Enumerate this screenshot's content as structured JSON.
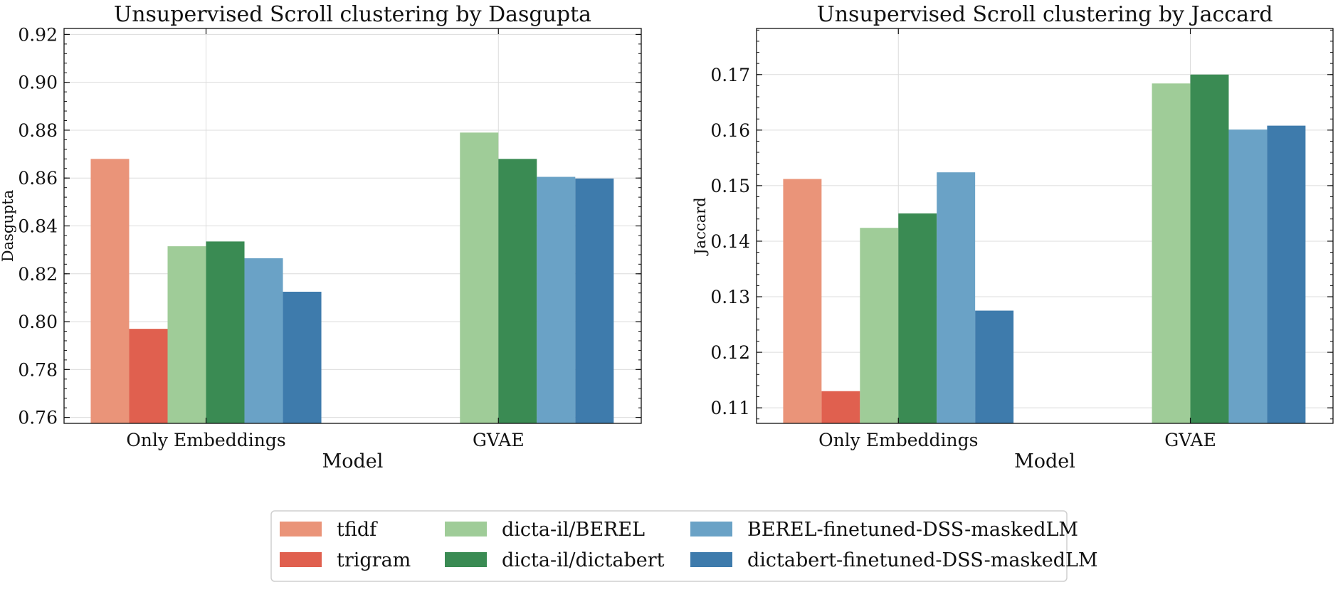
{
  "chart_data": [
    {
      "type": "bar",
      "title": "Unsupervised Scroll clustering by Dasgupta",
      "xlabel": "Model",
      "ylabel": "Dasgupta",
      "categories": [
        "Only Embeddings",
        "GVAE"
      ],
      "ylim": [
        0.7575,
        0.9225
      ],
      "yticks": [
        "0.76",
        "0.78",
        "0.80",
        "0.82",
        "0.84",
        "0.86",
        "0.88",
        "0.90",
        "0.92"
      ],
      "grid": true,
      "series": [
        {
          "name": "tfidf",
          "color": "#ea9479",
          "values": [
            0.868,
            null
          ]
        },
        {
          "name": "trigram",
          "color": "#e0604f",
          "values": [
            0.797,
            null
          ]
        },
        {
          "name": "dicta-il/BEREL",
          "color": "#9fcc98",
          "values": [
            0.8315,
            0.879
          ]
        },
        {
          "name": "dicta-il/dictabert",
          "color": "#3a8b53",
          "values": [
            0.8335,
            0.868
          ]
        },
        {
          "name": "BEREL-finetuned-DSS-maskedLM",
          "color": "#6aa2c6",
          "values": [
            0.8265,
            0.8605
          ]
        },
        {
          "name": "dictabert-finetuned-DSS-maskedLM",
          "color": "#3e7bac",
          "values": [
            0.8125,
            0.8598
          ]
        }
      ]
    },
    {
      "type": "bar",
      "title": "Unsupervised Scroll clustering by Jaccard",
      "xlabel": "Model",
      "ylabel": "Jaccard",
      "categories": [
        "Only Embeddings",
        "GVAE"
      ],
      "ylim": [
        0.1072,
        0.1783
      ],
      "yticks": [
        "0.11",
        "0.12",
        "0.13",
        "0.14",
        "0.15",
        "0.16",
        "0.17"
      ],
      "grid": true,
      "series": [
        {
          "name": "tfidf",
          "color": "#ea9479",
          "values": [
            0.1512,
            null
          ]
        },
        {
          "name": "trigram",
          "color": "#e0604f",
          "values": [
            0.113,
            null
          ]
        },
        {
          "name": "dicta-il/BEREL",
          "color": "#9fcc98",
          "values": [
            0.1424,
            0.1684
          ]
        },
        {
          "name": "dicta-il/dictabert",
          "color": "#3a8b53",
          "values": [
            0.145,
            0.17
          ]
        },
        {
          "name": "BEREL-finetuned-DSS-maskedLM",
          "color": "#6aa2c6",
          "values": [
            0.1524,
            0.1601
          ]
        },
        {
          "name": "dictabert-finetuned-DSS-maskedLM",
          "color": "#3e7bac",
          "values": [
            0.1275,
            0.1608
          ]
        }
      ]
    }
  ],
  "legend": {
    "placement": "bottom-center",
    "entries": [
      "tfidf",
      "trigram",
      "dicta-il/BEREL",
      "dicta-il/dictabert",
      "BEREL-finetuned-DSS-maskedLM",
      "dictabert-finetuned-DSS-maskedLM"
    ]
  }
}
